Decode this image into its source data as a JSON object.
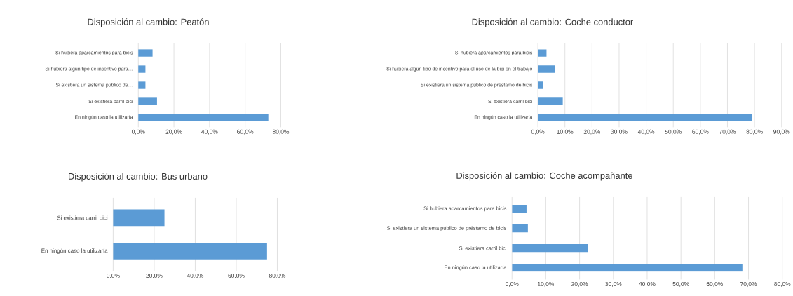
{
  "chart_data": [
    {
      "type": "bar",
      "orientation": "horizontal",
      "title": "Disposición al cambio: Peatón",
      "color": "#5b9bd5",
      "grid": "x",
      "categories": [
        "Si hubiera aparcamientos para bicis",
        "Si hubiera algún tipo de incentivo para…",
        "Si existiera un sistema público de…",
        "Si existiera carril bici",
        "En ningún caso la utilizaría"
      ],
      "values": [
        8,
        4,
        4,
        10.5,
        73
      ],
      "xlim": [
        0,
        80
      ],
      "xticks": [
        {
          "value": 0,
          "label": "0,0%"
        },
        {
          "value": 20,
          "label": "20,0%"
        },
        {
          "value": 40,
          "label": "40,0%"
        },
        {
          "value": 60,
          "label": "60,0%"
        },
        {
          "value": 80,
          "label": "80,0%"
        }
      ]
    },
    {
      "type": "bar",
      "orientation": "horizontal",
      "title": "Disposición al cambio: Coche conductor",
      "color": "#5b9bd5",
      "grid": "x",
      "categories": [
        "Si hubiera aparcamientos para bicis",
        "Si hubiera algún tipo de incentivo para el uso de la bici en el trabajo",
        "Si existiera un sistema público de préstamo de bicis",
        "Si existiera carril bici",
        "En ningún caso la utilizaría"
      ],
      "values": [
        3.2,
        6.3,
        2,
        9.2,
        79.2
      ],
      "xlim": [
        0,
        90
      ],
      "xticks": [
        {
          "value": 0,
          "label": "0,0%"
        },
        {
          "value": 10,
          "label": "10,0%"
        },
        {
          "value": 20,
          "label": "20,0%"
        },
        {
          "value": 30,
          "label": "30,0%"
        },
        {
          "value": 40,
          "label": "40,0%"
        },
        {
          "value": 50,
          "label": "50,0%"
        },
        {
          "value": 60,
          "label": "60,0%"
        },
        {
          "value": 70,
          "label": "70,0%"
        },
        {
          "value": 80,
          "label": "80,0%"
        },
        {
          "value": 90,
          "label": "90,0%"
        }
      ]
    },
    {
      "type": "bar",
      "orientation": "horizontal",
      "title": "Disposición al cambio: Bus urbano",
      "color": "#5b9bd5",
      "grid": "x",
      "categories": [
        "Si existiera carril bici",
        "En ningún caso la utilizaría"
      ],
      "values": [
        25,
        75
      ],
      "xlim": [
        0,
        80
      ],
      "xticks": [
        {
          "value": 0,
          "label": "0,0%"
        },
        {
          "value": 20,
          "label": "20,0%"
        },
        {
          "value": 40,
          "label": "40,0%"
        },
        {
          "value": 60,
          "label": "60,0%"
        },
        {
          "value": 80,
          "label": "80,0%"
        }
      ]
    },
    {
      "type": "bar",
      "orientation": "horizontal",
      "title": "Disposición al cambio: Coche acompañante",
      "color": "#5b9bd5",
      "grid": "x",
      "categories": [
        "Si hubiera aparcamientos para bicis",
        "Si existiera un sistema público de préstamo de bicis",
        "Si existiera carril bici",
        "En ningún caso la utilizaría"
      ],
      "values": [
        4.3,
        4.7,
        22.4,
        68.2
      ],
      "xlim": [
        0,
        80
      ],
      "xticks": [
        {
          "value": 0,
          "label": "0,0%"
        },
        {
          "value": 10,
          "label": "10,0%"
        },
        {
          "value": 20,
          "label": "20,0%"
        },
        {
          "value": 30,
          "label": "30,0%"
        },
        {
          "value": 40,
          "label": "40,0%"
        },
        {
          "value": 50,
          "label": "50,0%"
        },
        {
          "value": 60,
          "label": "60,0%"
        },
        {
          "value": 70,
          "label": "70,0%"
        },
        {
          "value": 80,
          "label": "80,0%"
        }
      ]
    }
  ]
}
